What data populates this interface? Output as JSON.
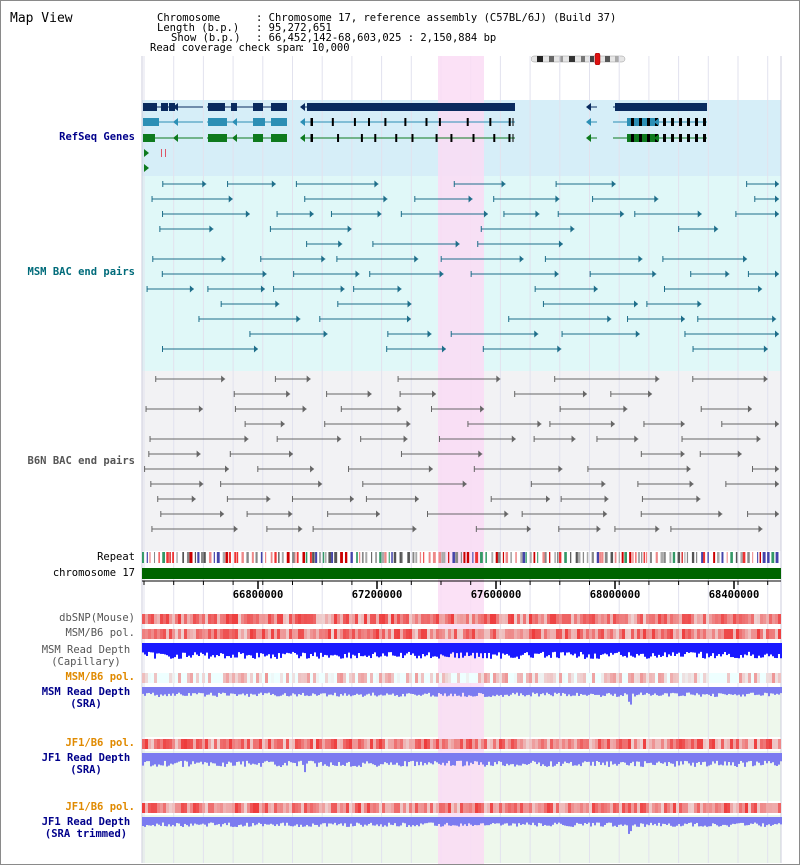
{
  "title": "Map View",
  "header": {
    "chromosome_key": "Chromosome",
    "chromosome_value": ": Chromosome 17, reference assembly (C57BL/6J) (Build 37)",
    "length_key": "Length (b.p.)",
    "length_value": ": 95,272,651",
    "show_key": "Show (b.p.)",
    "show_value": ": 66,452,142-68,603,025 : 2,150,884 bp",
    "coverage_key": "Read coverage check span",
    "coverage_value": ": 10,000"
  },
  "tracks": {
    "refseq": "RefSeq Genes",
    "msm_bac": "MSM BAC end pairs",
    "b6n_bac": "B6N BAC end pairs",
    "repeat": "Repeat",
    "chromosome": "chromosome 17",
    "dbsnp": "dbSNP(Mouse)",
    "msm_b6_pol": "MSM/B6 pol.",
    "msm_depth_cap_1": "MSM Read Depth",
    "msm_depth_cap_2": "(Capillary)",
    "msm_b6_pol_sra": "MSM/B6 pol.",
    "msm_depth_sra_1": "MSM Read Depth",
    "msm_depth_sra_2": "(SRA)",
    "jf1_pol_1": "JF1/B6 pol.",
    "jf1_depth_1": "JF1 Read Depth",
    "jf1_depth_1b": "(SRA)",
    "jf1_pol_2": "JF1/B6 pol.",
    "jf1_depth_2": "JF1 Read Depth",
    "jf1_depth_2b": "(SRA trimmed)"
  },
  "ruler": {
    "ticks": [
      "66800000",
      "67200000",
      "67600000",
      "68000000",
      "68400000"
    ]
  },
  "colors": {
    "highlight": "#fadcf5",
    "refseq_bg": "#d6eef8",
    "msm_bac_bg": "#e0f8f8",
    "b6n_bac_bg": "#f2f2f4",
    "sra_bg": "#eef8ec",
    "track_label_blue": "#00008b",
    "track_label_teal": "#006b7a",
    "track_label_gray": "#555555",
    "track_label_orange": "#e08a00",
    "chromosome_green": "#006400",
    "depth_blue": "#1a1aff",
    "depth_light_blue": "#7b7bf0",
    "pol_red": "#ee2a2a"
  }
}
